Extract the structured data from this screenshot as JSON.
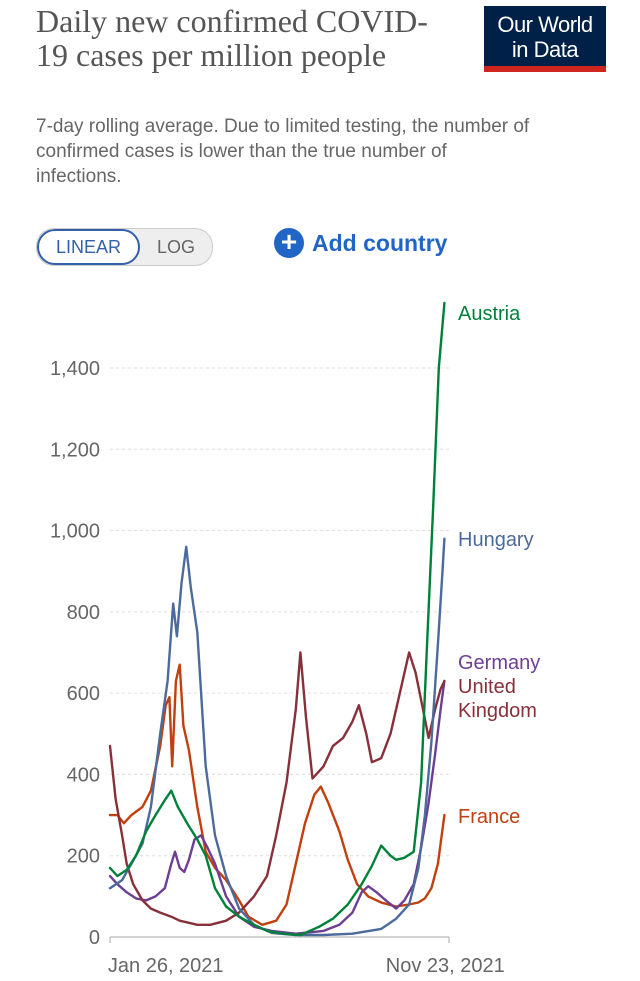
{
  "header": {
    "title": "Daily new confirmed COVID-19 cases per million people",
    "subtitle": "7-day rolling average. Due to limited testing, the number of confirmed cases is lower than the true number of infections.",
    "logo_line1": "Our World",
    "logo_line2": "in Data"
  },
  "controls": {
    "scale_options": [
      "LINEAR",
      "LOG"
    ],
    "active_scale": "LINEAR",
    "add_country_label": "Add country"
  },
  "colors": {
    "Austria": "#00813a",
    "Hungary": "#4c6a9c",
    "Germany": "#6d3e91",
    "United Kingdom": "#883039",
    "France": "#c0410f",
    "gridline": "#dddddd",
    "text": "#666666",
    "active_toggle": "#3360a9",
    "add_country": "#2166c6",
    "logo_bg": "#002147",
    "logo_bar": "#ce261e"
  },
  "chart_data": {
    "type": "line",
    "title": "Daily new confirmed COVID-19 cases per million people",
    "subtitle": "7-day rolling average. Due to limited testing, the number of confirmed cases is lower than the true number of infections.",
    "ylim": [
      0,
      1560
    ],
    "yticks": [
      0,
      200,
      400,
      600,
      800,
      1000,
      1200,
      1400
    ],
    "ytick_labels": [
      "0",
      "200",
      "400",
      "600",
      "800",
      "1,000",
      "1,200",
      "1,400"
    ],
    "xlim": [
      "2020-11-27",
      "2021-11-27"
    ],
    "xtick_labels": [
      {
        "date": "2021-01-26",
        "label": "Jan 26, 2021"
      },
      {
        "date": "2021-11-23",
        "label": "Nov 23, 2021"
      }
    ],
    "grid": true,
    "legend": "right-end-labels",
    "series": [
      {
        "name": "Austria",
        "points": [
          [
            "2020-11-27",
            170
          ],
          [
            "2020-12-05",
            150
          ],
          [
            "2020-12-15",
            165
          ],
          [
            "2020-12-25",
            200
          ],
          [
            "2021-01-05",
            260
          ],
          [
            "2021-01-15",
            300
          ],
          [
            "2021-01-26",
            340
          ],
          [
            "2021-02-01",
            360
          ],
          [
            "2021-02-08",
            320
          ],
          [
            "2021-02-18",
            280
          ],
          [
            "2021-03-01",
            240
          ],
          [
            "2021-03-10",
            200
          ],
          [
            "2021-03-20",
            120
          ],
          [
            "2021-04-01",
            75
          ],
          [
            "2021-04-15",
            50
          ],
          [
            "2021-05-01",
            30
          ],
          [
            "2021-05-15",
            15
          ],
          [
            "2021-06-01",
            8
          ],
          [
            "2021-06-20",
            5
          ],
          [
            "2021-07-10",
            25
          ],
          [
            "2021-07-25",
            45
          ],
          [
            "2021-08-10",
            80
          ],
          [
            "2021-08-25",
            130
          ],
          [
            "2021-09-05",
            175
          ],
          [
            "2021-09-15",
            225
          ],
          [
            "2021-09-25",
            200
          ],
          [
            "2021-10-01",
            190
          ],
          [
            "2021-10-10",
            195
          ],
          [
            "2021-10-20",
            210
          ],
          [
            "2021-10-28",
            380
          ],
          [
            "2021-11-03",
            700
          ],
          [
            "2021-11-10",
            1060
          ],
          [
            "2021-11-16",
            1400
          ],
          [
            "2021-11-22",
            1560
          ]
        ]
      },
      {
        "name": "Hungary",
        "points": [
          [
            "2020-11-27",
            120
          ],
          [
            "2020-12-10",
            140
          ],
          [
            "2020-12-20",
            180
          ],
          [
            "2021-01-01",
            230
          ],
          [
            "2021-01-10",
            320
          ],
          [
            "2021-01-20",
            500
          ],
          [
            "2021-01-28",
            630
          ],
          [
            "2021-02-03",
            820
          ],
          [
            "2021-02-07",
            740
          ],
          [
            "2021-02-12",
            870
          ],
          [
            "2021-02-17",
            960
          ],
          [
            "2021-02-22",
            860
          ],
          [
            "2021-03-01",
            750
          ],
          [
            "2021-03-10",
            420
          ],
          [
            "2021-03-20",
            250
          ],
          [
            "2021-04-01",
            150
          ],
          [
            "2021-04-15",
            70
          ],
          [
            "2021-05-01",
            30
          ],
          [
            "2021-05-20",
            10
          ],
          [
            "2021-06-15",
            5
          ],
          [
            "2021-07-15",
            5
          ],
          [
            "2021-08-15",
            8
          ],
          [
            "2021-09-15",
            20
          ],
          [
            "2021-10-01",
            45
          ],
          [
            "2021-10-15",
            80
          ],
          [
            "2021-10-25",
            170
          ],
          [
            "2021-11-01",
            300
          ],
          [
            "2021-11-08",
            480
          ],
          [
            "2021-11-15",
            720
          ],
          [
            "2021-11-20",
            900
          ],
          [
            "2021-11-22",
            980
          ]
        ]
      },
      {
        "name": "Germany",
        "points": [
          [
            "2020-11-27",
            150
          ],
          [
            "2020-12-05",
            130
          ],
          [
            "2020-12-15",
            110
          ],
          [
            "2020-12-25",
            95
          ],
          [
            "2021-01-05",
            90
          ],
          [
            "2021-01-15",
            100
          ],
          [
            "2021-01-25",
            120
          ],
          [
            "2021-02-01",
            180
          ],
          [
            "2021-02-05",
            210
          ],
          [
            "2021-02-10",
            170
          ],
          [
            "2021-02-15",
            160
          ],
          [
            "2021-02-20",
            190
          ],
          [
            "2021-02-26",
            240
          ],
          [
            "2021-03-05",
            250
          ],
          [
            "2021-03-12",
            220
          ],
          [
            "2021-03-20",
            180
          ],
          [
            "2021-04-01",
            100
          ],
          [
            "2021-04-15",
            50
          ],
          [
            "2021-05-01",
            25
          ],
          [
            "2021-05-20",
            15
          ],
          [
            "2021-06-15",
            8
          ],
          [
            "2021-07-15",
            15
          ],
          [
            "2021-08-01",
            30
          ],
          [
            "2021-08-15",
            60
          ],
          [
            "2021-08-25",
            110
          ],
          [
            "2021-09-01",
            125
          ],
          [
            "2021-09-10",
            110
          ],
          [
            "2021-09-20",
            90
          ],
          [
            "2021-10-01",
            70
          ],
          [
            "2021-10-10",
            90
          ],
          [
            "2021-10-20",
            130
          ],
          [
            "2021-10-28",
            220
          ],
          [
            "2021-11-05",
            330
          ],
          [
            "2021-11-12",
            450
          ],
          [
            "2021-11-18",
            560
          ],
          [
            "2021-11-22",
            630
          ]
        ]
      },
      {
        "name": "United Kingdom",
        "points": [
          [
            "2020-11-27",
            470
          ],
          [
            "2020-12-03",
            340
          ],
          [
            "2020-12-10",
            250
          ],
          [
            "2020-12-15",
            180
          ],
          [
            "2020-12-22",
            130
          ],
          [
            "2021-01-01",
            90
          ],
          [
            "2021-01-10",
            70
          ],
          [
            "2021-01-20",
            60
          ],
          [
            "2021-02-01",
            50
          ],
          [
            "2021-02-10",
            40
          ],
          [
            "2021-02-20",
            35
          ],
          [
            "2021-03-01",
            30
          ],
          [
            "2021-03-15",
            30
          ],
          [
            "2021-04-01",
            40
          ],
          [
            "2021-04-15",
            60
          ],
          [
            "2021-05-01",
            100
          ],
          [
            "2021-05-15",
            150
          ],
          [
            "2021-05-25",
            250
          ],
          [
            "2021-06-05",
            380
          ],
          [
            "2021-06-15",
            560
          ],
          [
            "2021-06-20",
            700
          ],
          [
            "2021-06-26",
            540
          ],
          [
            "2021-07-03",
            390
          ],
          [
            "2021-07-15",
            420
          ],
          [
            "2021-07-25",
            470
          ],
          [
            "2021-08-05",
            490
          ],
          [
            "2021-08-15",
            530
          ],
          [
            "2021-08-22",
            570
          ],
          [
            "2021-08-30",
            500
          ],
          [
            "2021-09-05",
            430
          ],
          [
            "2021-09-15",
            440
          ],
          [
            "2021-09-25",
            500
          ],
          [
            "2021-10-05",
            600
          ],
          [
            "2021-10-15",
            700
          ],
          [
            "2021-10-22",
            650
          ],
          [
            "2021-10-30",
            560
          ],
          [
            "2021-11-05",
            490
          ],
          [
            "2021-11-12",
            560
          ],
          [
            "2021-11-18",
            610
          ],
          [
            "2021-11-22",
            630
          ]
        ]
      },
      {
        "name": "France",
        "points": [
          [
            "2020-11-27",
            300
          ],
          [
            "2020-12-05",
            300
          ],
          [
            "2020-12-12",
            280
          ],
          [
            "2020-12-20",
            300
          ],
          [
            "2021-01-01",
            320
          ],
          [
            "2021-01-10",
            360
          ],
          [
            "2021-01-20",
            470
          ],
          [
            "2021-01-26",
            570
          ],
          [
            "2021-01-30",
            590
          ],
          [
            "2021-02-02",
            420
          ],
          [
            "2021-02-06",
            630
          ],
          [
            "2021-02-10",
            670
          ],
          [
            "2021-02-14",
            520
          ],
          [
            "2021-02-20",
            460
          ],
          [
            "2021-03-01",
            320
          ],
          [
            "2021-03-10",
            210
          ],
          [
            "2021-03-20",
            170
          ],
          [
            "2021-04-01",
            140
          ],
          [
            "2021-04-15",
            90
          ],
          [
            "2021-04-25",
            50
          ],
          [
            "2021-05-10",
            30
          ],
          [
            "2021-05-25",
            40
          ],
          [
            "2021-06-05",
            80
          ],
          [
            "2021-06-15",
            180
          ],
          [
            "2021-06-25",
            280
          ],
          [
            "2021-07-05",
            350
          ],
          [
            "2021-07-12",
            370
          ],
          [
            "2021-07-20",
            330
          ],
          [
            "2021-08-01",
            260
          ],
          [
            "2021-08-10",
            190
          ],
          [
            "2021-08-20",
            130
          ],
          [
            "2021-09-01",
            100
          ],
          [
            "2021-09-15",
            85
          ],
          [
            "2021-10-01",
            75
          ],
          [
            "2021-10-15",
            80
          ],
          [
            "2021-10-25",
            85
          ],
          [
            "2021-11-01",
            95
          ],
          [
            "2021-11-08",
            120
          ],
          [
            "2021-11-15",
            180
          ],
          [
            "2021-11-22",
            300
          ]
        ]
      }
    ],
    "end_labels": [
      {
        "series": "Austria",
        "lines": [
          "Austria"
        ]
      },
      {
        "series": "Hungary",
        "lines": [
          "Hungary"
        ]
      },
      {
        "series": "Germany",
        "lines": [
          "Germany"
        ]
      },
      {
        "series": "United Kingdom",
        "lines": [
          "United",
          "Kingdom"
        ]
      },
      {
        "series": "France",
        "lines": [
          "France"
        ]
      }
    ]
  }
}
